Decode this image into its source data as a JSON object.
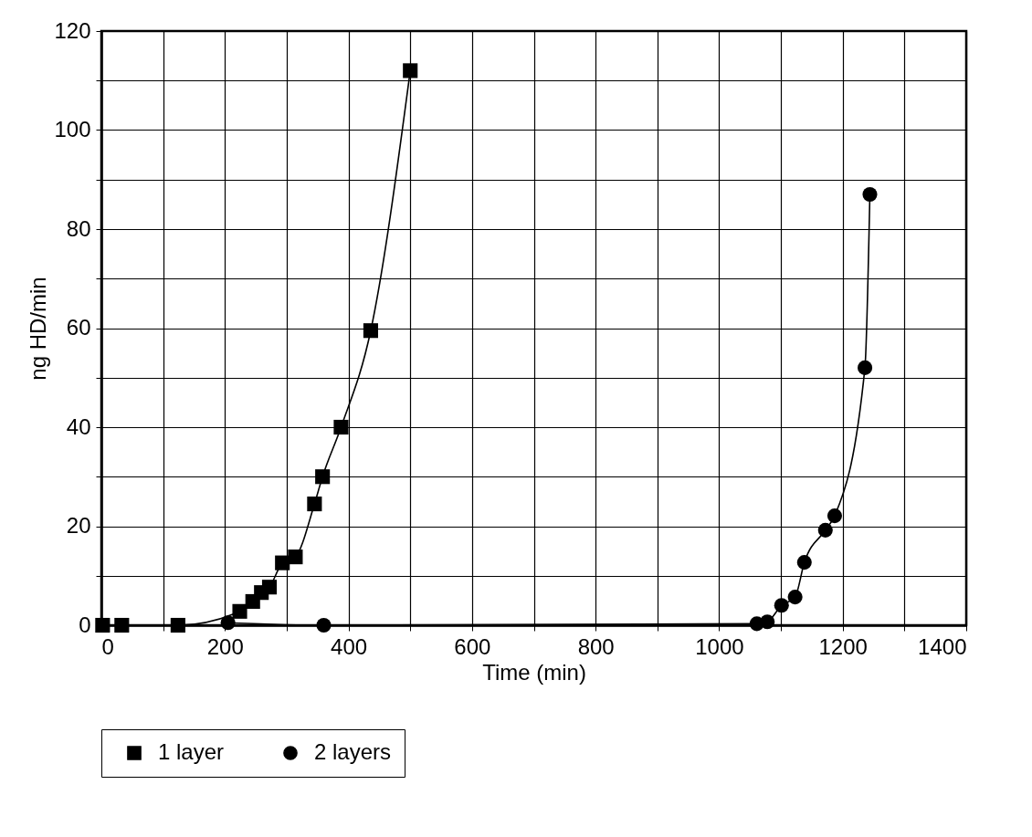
{
  "chart_data": {
    "type": "line",
    "xlabel": "Time (min)",
    "ylabel": "ng HD/min",
    "xlim": [
      0,
      1400
    ],
    "ylim": [
      0,
      120
    ],
    "xticks": [
      0,
      {
        "value": 100,
        "label": null
      },
      200,
      {
        "value": 300,
        "label": null
      },
      400,
      {
        "value": 500,
        "label": null
      },
      600,
      {
        "value": 700,
        "label": null
      },
      800,
      {
        "value": 900,
        "label": null
      },
      1000,
      {
        "value": 1100,
        "label": null
      },
      1200,
      {
        "value": 1300,
        "label": null
      },
      1400
    ],
    "yticks": [
      0,
      {
        "value": 10,
        "label": null
      },
      20,
      {
        "value": 30,
        "label": null
      },
      40,
      {
        "value": 50,
        "label": null
      },
      60,
      {
        "value": 70,
        "label": null
      },
      80,
      {
        "value": 90,
        "label": null
      },
      100,
      {
        "value": 110,
        "label": null
      },
      120
    ],
    "grid": true,
    "legend": "bottom",
    "series": [
      {
        "name": "1 layer",
        "color": "#000000",
        "marker": "square",
        "x": [
          2,
          33,
          124,
          224,
          245,
          259,
          272,
          293,
          314,
          345,
          358,
          388,
          436,
          500
        ],
        "values": [
          0,
          0,
          0,
          2.8,
          4.8,
          6.6,
          7.7,
          12.6,
          13.8,
          24.5,
          30,
          40,
          59.5,
          112
        ]
      },
      {
        "name": "2 layers",
        "color": "#000000",
        "marker": "circle",
        "x": [
          205,
          360,
          1061,
          1078,
          1101,
          1123,
          1138,
          1172,
          1187,
          1236,
          1244
        ],
        "values": [
          0.5,
          0,
          0.3,
          0.7,
          4,
          5.7,
          12.7,
          19.2,
          22.1,
          52,
          87
        ]
      }
    ]
  }
}
